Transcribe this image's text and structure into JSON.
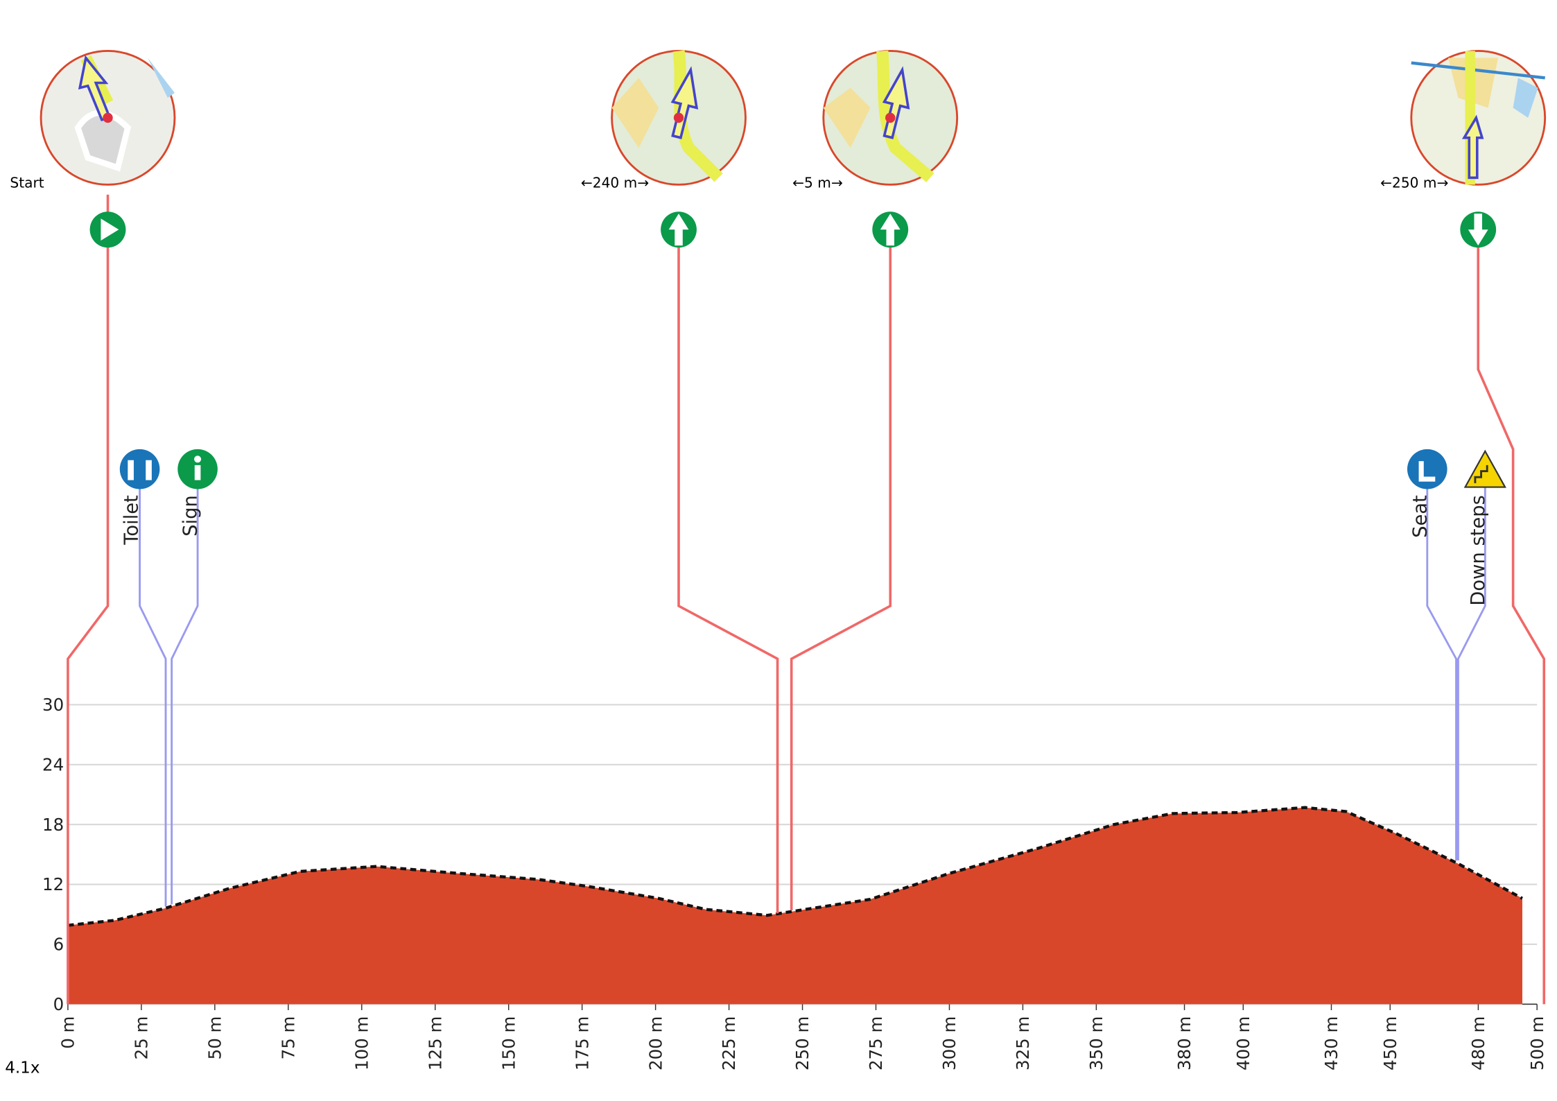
{
  "chart_data": {
    "type": "area",
    "x": [
      0,
      16,
      33,
      55,
      79,
      105,
      133,
      160,
      177,
      201,
      217,
      238,
      273,
      300,
      330,
      356,
      376,
      398,
      421,
      435,
      452,
      473,
      495
    ],
    "values": [
      7.9,
      8.4,
      9.6,
      11.6,
      13.3,
      13.8,
      13.1,
      12.5,
      11.8,
      10.6,
      9.5,
      8.9,
      10.5,
      13.1,
      15.6,
      18.0,
      19.1,
      19.2,
      19.7,
      19.3,
      17.1,
      14.1,
      10.6
    ],
    "color": "#d9472b",
    "xlim": [
      0,
      500
    ],
    "ylim": [
      0,
      30
    ],
    "xticks": [
      {
        "value": 0,
        "label": "0 m"
      },
      {
        "value": 25,
        "label": "25 m"
      },
      {
        "value": 50,
        "label": "50 m"
      },
      {
        "value": 75,
        "label": "75 m"
      },
      {
        "value": 100,
        "label": "100 m"
      },
      {
        "value": 125,
        "label": "125 m"
      },
      {
        "value": 150,
        "label": "150 m"
      },
      {
        "value": 175,
        "label": "175 m"
      },
      {
        "value": 200,
        "label": "200 m"
      },
      {
        "value": 225,
        "label": "225 m"
      },
      {
        "value": 250,
        "label": "250 m"
      },
      {
        "value": 275,
        "label": "275 m"
      },
      {
        "value": 300,
        "label": "300 m"
      },
      {
        "value": 325,
        "label": "325 m"
      },
      {
        "value": 350,
        "label": "350 m"
      },
      {
        "value": 380,
        "label": "380 m"
      },
      {
        "value": 400,
        "label": "400 m"
      },
      {
        "value": 430,
        "label": "430 m"
      },
      {
        "value": 450,
        "label": "450 m"
      },
      {
        "value": 480,
        "label": "480 m"
      },
      {
        "value": 500,
        "label": "500 m"
      }
    ],
    "yticks": [
      0,
      6,
      12,
      18,
      24,
      30
    ],
    "grid": true
  },
  "waypoints": [
    {
      "label": "Start"
    },
    {
      "label": "←240 m→"
    },
    {
      "label": "←5 m→"
    },
    {
      "label": "←250 m→"
    }
  ],
  "poi": [
    {
      "label": "Toilet"
    },
    {
      "label": "Sign"
    },
    {
      "label": "Seat"
    },
    {
      "label": "Down steps"
    }
  ],
  "zoom": "4.1x"
}
